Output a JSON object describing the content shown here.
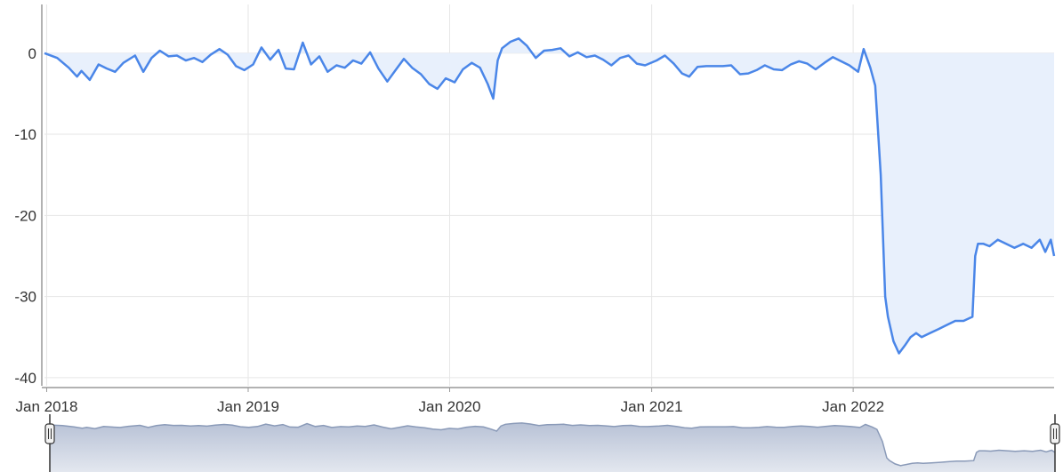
{
  "chart_data": {
    "type": "area",
    "title": "",
    "xlabel": "",
    "ylabel": "",
    "ylim": [
      -41,
      6
    ],
    "xlim": [
      "2017-12-28",
      "2022-12-31"
    ],
    "grid": true,
    "legend": "none",
    "yticks": [
      0,
      -10,
      -20,
      -30,
      -40
    ],
    "ytick_labels": [
      "0",
      "-10",
      "-20",
      "-30",
      "-40"
    ],
    "xticks": [
      "2018-01-01",
      "2019-01-01",
      "2020-01-01",
      "2021-01-01",
      "2022-01-01"
    ],
    "xtick_labels": [
      "Jan 2018",
      "Jan 2019",
      "Jan 2020",
      "Jan 2021",
      "Jan 2022"
    ],
    "colors": {
      "line": "#4a86e8",
      "fill": "#e8f0fc",
      "grid": "#e6e6e6",
      "axis": "#999999",
      "navigator_fill": "#b8c2d6",
      "navigator_line": "#8a9ab8"
    },
    "navigator": {
      "visible": true,
      "range_start": "2017-12-28",
      "range_end": "2022-12-31"
    },
    "series": [
      {
        "x": [
          "2017-12-28",
          "2018-01-20",
          "2018-02-10",
          "2018-02-25",
          "2018-03-05",
          "2018-03-20",
          "2018-04-05",
          "2018-04-20",
          "2018-05-05",
          "2018-05-20",
          "2018-06-10",
          "2018-06-25",
          "2018-07-10",
          "2018-07-25",
          "2018-08-10",
          "2018-08-25",
          "2018-09-10",
          "2018-09-25",
          "2018-10-10",
          "2018-10-25",
          "2018-11-10",
          "2018-11-25",
          "2018-12-10",
          "2018-12-25",
          "2019-01-10",
          "2019-01-25",
          "2019-02-10",
          "2019-02-25",
          "2019-03-10",
          "2019-03-25",
          "2019-04-10",
          "2019-04-25",
          "2019-05-10",
          "2019-05-25",
          "2019-06-10",
          "2019-06-25",
          "2019-07-10",
          "2019-07-25",
          "2019-08-10",
          "2019-08-25",
          "2019-09-10",
          "2019-09-25",
          "2019-10-10",
          "2019-10-25",
          "2019-11-10",
          "2019-11-25",
          "2019-12-10",
          "2019-12-25",
          "2020-01-10",
          "2020-01-25",
          "2020-02-10",
          "2020-02-25",
          "2020-03-10",
          "2020-03-20",
          "2020-03-28",
          "2020-04-05",
          "2020-04-20",
          "2020-05-05",
          "2020-05-20",
          "2020-06-05",
          "2020-06-20",
          "2020-07-05",
          "2020-07-20",
          "2020-08-05",
          "2020-08-20",
          "2020-09-05",
          "2020-09-20",
          "2020-10-05",
          "2020-10-20",
          "2020-11-05",
          "2020-11-20",
          "2020-12-05",
          "2020-12-20",
          "2021-01-10",
          "2021-01-25",
          "2021-02-10",
          "2021-02-25",
          "2021-03-10",
          "2021-03-25",
          "2021-04-10",
          "2021-04-25",
          "2021-05-10",
          "2021-05-25",
          "2021-06-10",
          "2021-06-25",
          "2021-07-10",
          "2021-07-25",
          "2021-08-10",
          "2021-08-25",
          "2021-09-10",
          "2021-09-25",
          "2021-10-10",
          "2021-10-25",
          "2021-11-10",
          "2021-11-25",
          "2021-12-10",
          "2021-12-25",
          "2022-01-10",
          "2022-01-20",
          "2022-02-01",
          "2022-02-10",
          "2022-02-20",
          "2022-02-28",
          "2022-03-05",
          "2022-03-15",
          "2022-03-25",
          "2022-04-05",
          "2022-04-15",
          "2022-04-25",
          "2022-05-05",
          "2022-05-20",
          "2022-06-05",
          "2022-06-20",
          "2022-07-05",
          "2022-07-20",
          "2022-08-05",
          "2022-08-10",
          "2022-08-15",
          "2022-08-25",
          "2022-09-05",
          "2022-09-20",
          "2022-10-05",
          "2022-10-20",
          "2022-11-05",
          "2022-11-20",
          "2022-12-05",
          "2022-12-15",
          "2022-12-25",
          "2022-12-31"
        ],
        "y": [
          0,
          -0.6,
          -1.8,
          -2.9,
          -2.2,
          -3.3,
          -1.4,
          -1.9,
          -2.3,
          -1.2,
          -0.3,
          -2.3,
          -0.6,
          0.3,
          -0.4,
          -0.3,
          -0.9,
          -0.6,
          -1.1,
          -0.2,
          0.5,
          -0.2,
          -1.6,
          -2.1,
          -1.4,
          0.7,
          -0.8,
          0.4,
          -1.9,
          -2.0,
          1.3,
          -1.4,
          -0.4,
          -2.3,
          -1.5,
          -1.8,
          -0.9,
          -1.3,
          0.1,
          -1.9,
          -3.5,
          -2.1,
          -0.7,
          -1.8,
          -2.6,
          -3.8,
          -4.4,
          -3.1,
          -3.6,
          -2.0,
          -1.2,
          -1.8,
          -3.8,
          -5.6,
          -0.9,
          0.6,
          1.4,
          1.8,
          0.9,
          -0.6,
          0.3,
          0.4,
          0.6,
          -0.4,
          0.1,
          -0.5,
          -0.3,
          -0.8,
          -1.5,
          -0.6,
          -0.3,
          -1.3,
          -1.5,
          -0.9,
          -0.3,
          -1.3,
          -2.5,
          -2.9,
          -1.7,
          -1.6,
          -1.6,
          -1.6,
          -1.5,
          -2.6,
          -2.5,
          -2.1,
          -1.5,
          -2.0,
          -2.1,
          -1.4,
          -1.0,
          -1.3,
          -2.0,
          -1.2,
          -0.5,
          -1.0,
          -1.5,
          -2.3,
          0.5,
          -1.8,
          -4.0,
          -15.0,
          -30.0,
          -32.5,
          -35.5,
          -37.0,
          -36.0,
          -35.0,
          -34.5,
          -35.0,
          -34.5,
          -34.0,
          -33.5,
          -33.0,
          -33.0,
          -32.5,
          -25.0,
          -23.5,
          -23.5,
          -23.8,
          -23.0,
          -23.5,
          -24.0,
          -23.5,
          -24.0,
          -23.0,
          -24.5,
          -23.0,
          -25.0
        ]
      }
    ]
  }
}
